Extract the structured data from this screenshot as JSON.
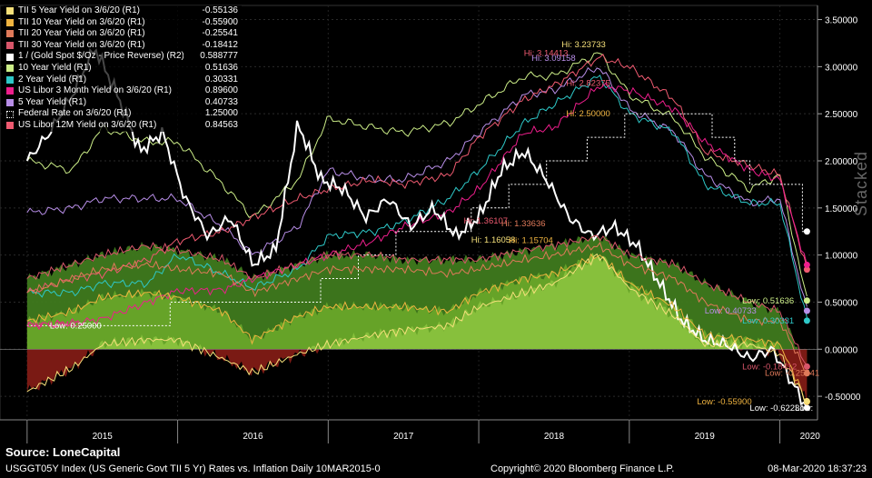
{
  "chart_data": {
    "type": "line",
    "stacked_label": "Stacked",
    "y_axis": {
      "ticks": [
        "3.50000",
        "3.00000",
        "2.50000",
        "2.00000",
        "1.50000",
        "1.00000",
        "0.50000",
        "0.00000",
        "-0.50000"
      ],
      "ylim": [
        -0.75,
        3.65
      ]
    },
    "x_axis": {
      "years": [
        "2015",
        "2016",
        "2017",
        "2018",
        "2019",
        "2020"
      ]
    },
    "legend": [
      {
        "name": "TII 5 Year Yield on 3/6/20 (R1)",
        "value": "-0.55136",
        "color": "#f5e07a",
        "style": "solid"
      },
      {
        "name": "TII 10 Year Yield on 3/6/20 (R1)",
        "value": "-0.55900",
        "color": "#f0b440",
        "style": "solid"
      },
      {
        "name": "TII 20 Year Yield on 3/6/20 (R1)",
        "value": "-0.25541",
        "color": "#e07a5a",
        "style": "solid"
      },
      {
        "name": "TII 30 Year Yield on 3/6/20 (R1)",
        "value": "-0.18412",
        "color": "#d8566a",
        "style": "solid"
      },
      {
        "name": "1 / (Gold Spot $/Oz - Price Reverse) (R2)",
        "value": "0.588777",
        "color": "#ffffff",
        "style": "solid"
      },
      {
        "name": "10 Year Yield (R1)",
        "value": "0.51636",
        "color": "#ccee88",
        "style": "solid"
      },
      {
        "name": "2 Year Yield (R1)",
        "value": "0.30331",
        "color": "#2ec8c8",
        "style": "solid"
      },
      {
        "name": "US Libor 3 Month Yield on 3/6/20 (R1)",
        "value": "0.89600",
        "color": "#ee1e8c",
        "style": "solid"
      },
      {
        "name": "5 Year Yield (R1)",
        "value": "0.40733",
        "color": "#b88ee8",
        "style": "solid"
      },
      {
        "name": "Federal Rate on 3/6/20 (R1)",
        "value": "1.25000",
        "color": "#ffffff",
        "style": "dotted"
      },
      {
        "name": "US Libor 12M Yield on 3/6/20 (R1)",
        "value": "0.84563",
        "color": "#ee5a70",
        "style": "solid"
      }
    ],
    "series": [
      {
        "name": "10 Year Yield (R1)",
        "color": "#ccee88",
        "x": [
          2015.0,
          2015.3,
          2015.5,
          2015.8,
          2016.0,
          2016.3,
          2016.5,
          2016.8,
          2017.0,
          2017.3,
          2017.5,
          2017.8,
          2018.0,
          2018.3,
          2018.5,
          2018.8,
          2019.0,
          2019.3,
          2019.5,
          2019.8,
          2020.0,
          2020.18
        ],
        "y": [
          2.0,
          1.9,
          2.35,
          2.2,
          2.2,
          1.75,
          1.4,
          1.8,
          2.45,
          2.35,
          2.3,
          2.4,
          2.6,
          2.9,
          2.9,
          3.15,
          2.7,
          2.45,
          2.05,
          1.7,
          1.85,
          0.51636
        ]
      },
      {
        "name": "5 Year Yield (R1)",
        "color": "#b88ee8",
        "x": [
          2015.0,
          2015.3,
          2015.5,
          2015.8,
          2016.0,
          2016.3,
          2016.5,
          2016.8,
          2017.0,
          2017.3,
          2017.5,
          2017.8,
          2018.0,
          2018.3,
          2018.5,
          2018.8,
          2019.0,
          2019.3,
          2019.5,
          2019.8,
          2020.0,
          2020.18
        ],
        "y": [
          1.45,
          1.5,
          1.6,
          1.6,
          1.6,
          1.3,
          1.0,
          1.3,
          1.9,
          1.8,
          1.8,
          2.0,
          2.3,
          2.7,
          2.75,
          3.0,
          2.55,
          2.3,
          1.85,
          1.55,
          1.6,
          0.40733
        ]
      },
      {
        "name": "2 Year Yield (R1)",
        "color": "#2ec8c8",
        "x": [
          2015.0,
          2015.3,
          2015.5,
          2015.8,
          2016.0,
          2016.3,
          2016.5,
          2016.8,
          2017.0,
          2017.3,
          2017.5,
          2017.8,
          2018.0,
          2018.3,
          2018.5,
          2018.8,
          2019.0,
          2019.3,
          2019.5,
          2019.8,
          2020.0,
          2020.18
        ],
        "y": [
          0.6,
          0.6,
          0.7,
          0.7,
          1.0,
          0.8,
          0.65,
          0.85,
          1.2,
          1.25,
          1.35,
          1.6,
          1.9,
          2.4,
          2.6,
          2.9,
          2.5,
          2.3,
          1.75,
          1.55,
          1.55,
          0.30331
        ]
      },
      {
        "name": "US Libor 12M Yield on 3/6/20 (R1)",
        "color": "#ee5a70",
        "x": [
          2015.0,
          2015.3,
          2015.5,
          2015.8,
          2016.0,
          2016.3,
          2016.5,
          2016.8,
          2017.0,
          2017.3,
          2017.5,
          2017.8,
          2018.0,
          2018.3,
          2018.5,
          2018.8,
          2019.0,
          2019.3,
          2019.5,
          2019.8,
          2020.0,
          2020.18
        ],
        "y": [
          0.6,
          0.75,
          0.8,
          0.95,
          1.15,
          1.25,
          1.4,
          1.6,
          1.7,
          1.8,
          1.75,
          1.85,
          2.25,
          2.65,
          2.8,
          3.1,
          3.0,
          2.65,
          2.1,
          1.95,
          1.85,
          0.84563
        ]
      },
      {
        "name": "US Libor 3 Month Yield on 3/6/20 (R1)",
        "color": "#ee1e8c",
        "x": [
          2015.0,
          2015.3,
          2015.5,
          2015.8,
          2016.0,
          2016.3,
          2016.5,
          2016.8,
          2017.0,
          2017.3,
          2017.5,
          2017.8,
          2018.0,
          2018.3,
          2018.5,
          2018.8,
          2019.0,
          2019.3,
          2019.5,
          2019.8,
          2020.0,
          2020.18
        ],
        "y": [
          0.25,
          0.28,
          0.32,
          0.5,
          0.62,
          0.63,
          0.75,
          0.9,
          1.0,
          1.15,
          1.3,
          1.45,
          1.7,
          2.3,
          2.35,
          2.8,
          2.75,
          2.55,
          2.2,
          1.9,
          1.8,
          0.896
        ]
      },
      {
        "name": "Federal Rate on 3/6/20 (R1)",
        "color": "#ffffff",
        "x": [
          2015.0,
          2015.95,
          2015.95,
          2016.95,
          2016.95,
          2017.2,
          2017.2,
          2017.45,
          2017.45,
          2017.95,
          2017.95,
          2018.2,
          2018.2,
          2018.45,
          2018.45,
          2018.72,
          2018.72,
          2018.97,
          2018.97,
          2019.55,
          2019.55,
          2019.7,
          2019.7,
          2019.8,
          2019.8,
          2020.15,
          2020.15,
          2020.18
        ],
        "y": [
          0.25,
          0.25,
          0.5,
          0.5,
          0.75,
          0.75,
          1.0,
          1.0,
          1.25,
          1.25,
          1.5,
          1.5,
          1.75,
          1.75,
          2.0,
          2.0,
          2.25,
          2.25,
          2.5,
          2.5,
          2.25,
          2.25,
          2.0,
          2.0,
          1.75,
          1.75,
          1.25,
          1.25
        ]
      },
      {
        "name": "1 / (Gold Spot $/Oz - Price Reverse) (R2)",
        "color": "#ffffff",
        "x": [
          2015.0,
          2015.15,
          2015.3,
          2015.45,
          2015.6,
          2015.75,
          2015.9,
          2016.05,
          2016.2,
          2016.35,
          2016.5,
          2016.65,
          2016.8,
          2016.95,
          2017.1,
          2017.25,
          2017.4,
          2017.55,
          2017.7,
          2017.85,
          2018.0,
          2018.15,
          2018.3,
          2018.45,
          2018.6,
          2018.75,
          2018.9,
          2019.05,
          2019.2,
          2019.35,
          2019.5,
          2019.65,
          2019.8,
          2019.95,
          2020.18
        ],
        "y": [
          2.0,
          2.3,
          2.7,
          3.2,
          2.7,
          2.1,
          2.3,
          1.6,
          1.2,
          1.4,
          0.9,
          1.05,
          2.4,
          1.8,
          1.7,
          1.4,
          1.6,
          1.3,
          1.5,
          1.2,
          1.4,
          1.9,
          2.1,
          1.8,
          1.4,
          1.2,
          1.3,
          1.1,
          0.7,
          0.3,
          0.1,
          0.05,
          -0.1,
          0.0,
          -0.62231
        ]
      },
      {
        "name": "TII 30 Year Yield on 3/6/20 (R1)",
        "color": "#d8566a",
        "x": [
          2015.0,
          2015.3,
          2015.5,
          2015.8,
          2016.0,
          2016.3,
          2016.5,
          2016.8,
          2017.0,
          2017.3,
          2017.5,
          2017.8,
          2018.0,
          2018.3,
          2018.5,
          2018.8,
          2019.0,
          2019.3,
          2019.5,
          2019.8,
          2020.0,
          2020.18
        ],
        "y": [
          0.75,
          0.9,
          1.0,
          1.1,
          1.05,
          0.95,
          0.75,
          0.9,
          1.0,
          1.0,
          0.95,
          0.95,
          0.95,
          1.05,
          1.1,
          1.2,
          1.0,
          0.9,
          0.7,
          0.5,
          0.4,
          -0.18412
        ]
      },
      {
        "name": "TII 20 Year Yield on 3/6/20 (R1)",
        "color": "#e07a5a",
        "x": [
          2015.0,
          2015.3,
          2015.5,
          2015.8,
          2016.0,
          2016.3,
          2016.5,
          2016.8,
          2017.0,
          2017.3,
          2017.5,
          2017.8,
          2018.0,
          2018.3,
          2018.5,
          2018.8,
          2019.0,
          2019.3,
          2019.5,
          2019.8,
          2020.0,
          2020.18
        ],
        "y": [
          0.6,
          0.75,
          0.85,
          0.9,
          0.85,
          0.8,
          0.6,
          0.75,
          0.85,
          0.85,
          0.85,
          0.8,
          0.85,
          0.95,
          1.0,
          1.1,
          0.9,
          0.75,
          0.5,
          0.3,
          0.3,
          -0.25541
        ]
      },
      {
        "name": "TII 10 Year Yield on 3/6/20 (R1)",
        "color": "#f0b440",
        "x": [
          2015.0,
          2015.3,
          2015.5,
          2015.8,
          2016.0,
          2016.3,
          2016.5,
          2016.8,
          2017.0,
          2017.3,
          2017.5,
          2017.8,
          2018.0,
          2018.3,
          2018.5,
          2018.8,
          2019.0,
          2019.3,
          2019.5,
          2019.8,
          2020.0,
          2020.18
        ],
        "y": [
          0.3,
          0.4,
          0.55,
          0.6,
          0.55,
          0.4,
          0.1,
          0.35,
          0.45,
          0.45,
          0.45,
          0.4,
          0.6,
          0.75,
          0.8,
          1.0,
          0.7,
          0.45,
          0.15,
          0.1,
          0.05,
          -0.559
        ]
      },
      {
        "name": "TII 5 Year Yield on 3/6/20 (R1)",
        "color": "#f5e07a",
        "x": [
          2015.0,
          2015.3,
          2015.5,
          2015.8,
          2016.0,
          2016.3,
          2016.5,
          2016.8,
          2017.0,
          2017.3,
          2017.5,
          2017.8,
          2018.0,
          2018.3,
          2018.5,
          2018.8,
          2019.0,
          2019.3,
          2019.5,
          2019.8,
          2020.0,
          2020.18
        ],
        "y": [
          -0.45,
          -0.2,
          0.05,
          0.1,
          0.1,
          -0.1,
          -0.25,
          -0.05,
          0.05,
          0.15,
          0.2,
          0.25,
          0.45,
          0.6,
          0.7,
          1.0,
          0.65,
          0.35,
          0.05,
          0.05,
          -0.05,
          -0.55136
        ]
      }
    ],
    "annotations": [
      {
        "text": "Hi: 3.23733",
        "x": 2018.55,
        "y": 3.23733,
        "color": "#f5e07a"
      },
      {
        "text": "Hi: 3.14413",
        "x": 2018.3,
        "y": 3.14413,
        "color": "#ee5a70"
      },
      {
        "text": "Hi: 3.09158",
        "x": 2018.35,
        "y": 3.09158,
        "color": "#b88ee8"
      },
      {
        "text": "Hi: 2.82375",
        "x": 2018.58,
        "y": 2.82375,
        "color": "#ee5a70"
      },
      {
        "text": "Hi: 2.50000",
        "x": 2018.58,
        "y": 2.5,
        "color": "#f0b440"
      },
      {
        "text": "Hi: 1.36107",
        "x": 2017.9,
        "y": 1.36107,
        "color": "#ee5a70"
      },
      {
        "text": "Hi: 1.33636",
        "x": 2018.15,
        "y": 1.33636,
        "color": "#e07a5a"
      },
      {
        "text": "Hi: 1.16058",
        "x": 2017.95,
        "y": 1.16058,
        "color": "#f5e07a"
      },
      {
        "text": "Hi: 1.15704",
        "x": 2018.2,
        "y": 1.15704,
        "color": "#f0b440"
      },
      {
        "text": "Low: 0.26460",
        "x": 2015.0,
        "y": 0.2646,
        "color": "#ee1e8c"
      },
      {
        "text": "Low: 0.25000",
        "x": 2015.15,
        "y": 0.25,
        "color": "#ffffff"
      },
      {
        "text": "Low: 0.51636",
        "x": 2019.75,
        "y": 0.51636,
        "color": "#ccee88"
      },
      {
        "text": "Low: 0.30331",
        "x": 2019.75,
        "y": 0.30331,
        "color": "#2ec8c8"
      },
      {
        "text": "Low: 0.40733",
        "x": 2019.5,
        "y": 0.40733,
        "color": "#b88ee8"
      },
      {
        "text": "Low: -0.18412",
        "x": 2019.75,
        "y": -0.18412,
        "color": "#d8566a"
      },
      {
        "text": "Low: -0.25541",
        "x": 2019.9,
        "y": -0.25541,
        "color": "#e07a5a"
      },
      {
        "text": "Low: -0.55900",
        "x": 2019.45,
        "y": -0.559,
        "color": "#f0b440"
      },
      {
        "text": "Low: -0.62231",
        "x": 2019.8,
        "y": -0.62231,
        "color": "#ffffff"
      },
      {
        "text": "Low:",
        "x": 2020.1,
        "y": -0.62231,
        "color": "#ffffff"
      }
    ]
  },
  "footer": {
    "source": "Source: LoneCapital",
    "left": "USGGT05Y Index (US Generic Govt TII 5 Yr) Rates vs. Inflation  Daily 10MAR2015-0",
    "middle": "Copyright© 2020 Bloomberg Finance L.P.",
    "right": "08-Mar-2020 18:37:23"
  }
}
